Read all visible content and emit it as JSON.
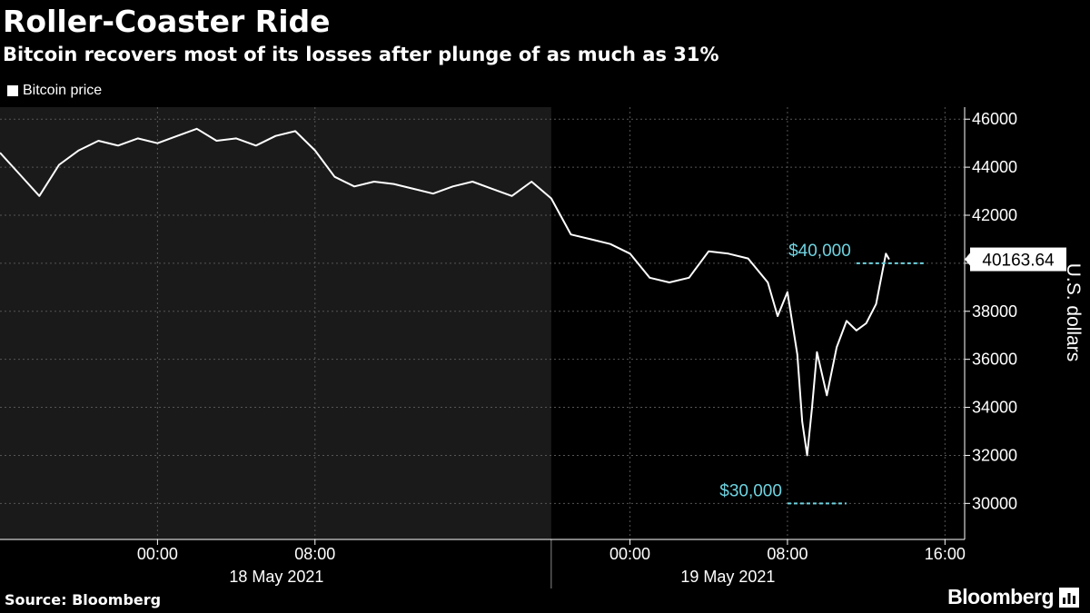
{
  "title": "Roller-Coaster Ride",
  "subtitle": "Bitcoin recovers most of its losses after plunge of as much as 31%",
  "source": "Source: Bloomberg",
  "brand": "Bloomberg",
  "colors": {
    "background": "#000000",
    "line": "#ffffff",
    "shaded_region": "#1a1a1a",
    "annotation": "#6fd3e0",
    "grid": "#555555"
  },
  "chart_data": {
    "type": "line",
    "title": "Roller-Coaster Ride",
    "subtitle": "Bitcoin recovers most of its losses after plunge of as much as 31%",
    "xlabel": "",
    "ylabel": "U.S. dollars",
    "ylim": [
      28500,
      46500
    ],
    "xlim": [
      "2021-05-17 16:00",
      "2021-05-19 17:00"
    ],
    "yticks": [
      30000,
      32000,
      34000,
      36000,
      38000,
      40000,
      42000,
      44000,
      46000
    ],
    "ytick_labels": [
      "30000",
      "32000",
      "34000",
      "36000",
      "38000",
      "40000",
      "42000",
      "44000",
      "46000"
    ],
    "xticks": [
      "2021-05-18 00:00",
      "2021-05-18 08:00",
      "2021-05-19 00:00",
      "2021-05-19 08:00",
      "2021-05-19 16:00"
    ],
    "xtick_labels": [
      "00:00",
      "08:00",
      "00:00",
      "08:00",
      "16:00"
    ],
    "date_labels": [
      "18 May 2021",
      "19 May 2021"
    ],
    "legend": [
      "Bitcoin price"
    ],
    "legend_position": "top-left",
    "grid": true,
    "shaded_range": [
      "2021-05-17 16:00",
      "2021-05-18 20:00"
    ],
    "last_value_label": "40163.64",
    "annotations": [
      {
        "text": "$40,000",
        "y": 40000,
        "x_start": "2021-05-19 11:30",
        "x_end": "2021-05-19 15:00"
      },
      {
        "text": "$30,000",
        "y": 30000,
        "x_start": "2021-05-19 08:00",
        "x_end": "2021-05-19 11:00"
      }
    ],
    "series": [
      {
        "name": "Bitcoin price",
        "x": [
          "2021-05-17 16:00",
          "2021-05-17 17:00",
          "2021-05-17 18:00",
          "2021-05-17 19:00",
          "2021-05-17 20:00",
          "2021-05-17 21:00",
          "2021-05-17 22:00",
          "2021-05-17 23:00",
          "2021-05-18 00:00",
          "2021-05-18 01:00",
          "2021-05-18 02:00",
          "2021-05-18 03:00",
          "2021-05-18 04:00",
          "2021-05-18 05:00",
          "2021-05-18 06:00",
          "2021-05-18 07:00",
          "2021-05-18 08:00",
          "2021-05-18 09:00",
          "2021-05-18 10:00",
          "2021-05-18 11:00",
          "2021-05-18 12:00",
          "2021-05-18 13:00",
          "2021-05-18 14:00",
          "2021-05-18 15:00",
          "2021-05-18 16:00",
          "2021-05-18 17:00",
          "2021-05-18 18:00",
          "2021-05-18 19:00",
          "2021-05-18 20:00",
          "2021-05-18 21:00",
          "2021-05-18 22:00",
          "2021-05-18 23:00",
          "2021-05-19 00:00",
          "2021-05-19 01:00",
          "2021-05-19 02:00",
          "2021-05-19 03:00",
          "2021-05-19 04:00",
          "2021-05-19 05:00",
          "2021-05-19 06:00",
          "2021-05-19 07:00",
          "2021-05-19 07:30",
          "2021-05-19 08:00",
          "2021-05-19 08:30",
          "2021-05-19 08:45",
          "2021-05-19 09:00",
          "2021-05-19 09:15",
          "2021-05-19 09:30",
          "2021-05-19 10:00",
          "2021-05-19 10:30",
          "2021-05-19 11:00",
          "2021-05-19 11:30",
          "2021-05-19 12:00",
          "2021-05-19 12:30",
          "2021-05-19 13:00",
          "2021-05-19 13:10"
        ],
        "values": [
          44600,
          43700,
          42800,
          44100,
          44700,
          45100,
          44900,
          45200,
          45000,
          45300,
          45600,
          45100,
          45200,
          44900,
          45300,
          45500,
          44700,
          43600,
          43200,
          43400,
          43300,
          43100,
          42900,
          43200,
          43400,
          43100,
          42800,
          43400,
          42700,
          41200,
          41000,
          40800,
          40400,
          39400,
          39200,
          39400,
          40500,
          40400,
          40200,
          39200,
          37800,
          38800,
          36200,
          33400,
          32000,
          34000,
          36300,
          34500,
          36500,
          37600,
          37200,
          37500,
          38300,
          40400,
          40163.64
        ]
      }
    ]
  }
}
